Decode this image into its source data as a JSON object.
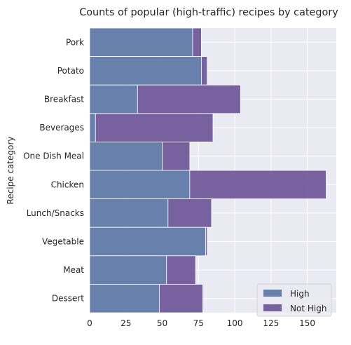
{
  "chart_data": {
    "type": "bar",
    "orientation": "horizontal",
    "stacked": true,
    "title": "Counts of popular (high-traffic) recipes by category",
    "xlabel": "",
    "ylabel": "Recipe category",
    "categories": [
      "Pork",
      "Potato",
      "Breakfast",
      "Beverages",
      "One Dish Meal",
      "Chicken",
      "Lunch/Snacks",
      "Vegetable",
      "Meat",
      "Dessert"
    ],
    "series": [
      {
        "name": "High",
        "values": [
          71,
          77,
          33,
          4,
          50,
          69,
          54,
          80,
          53,
          48
        ],
        "color": "#5975a4"
      },
      {
        "name": "Not High",
        "values": [
          6,
          4,
          71,
          81,
          19,
          94,
          30,
          1,
          20,
          30
        ],
        "color": "#6a5396"
      }
    ],
    "xlim": [
      0,
      170
    ],
    "xticks": [
      "0",
      "25",
      "50",
      "75",
      "100",
      "125",
      "150"
    ],
    "grid": true,
    "legend_position": "bottom-right",
    "background": "#eaeaf2"
  }
}
